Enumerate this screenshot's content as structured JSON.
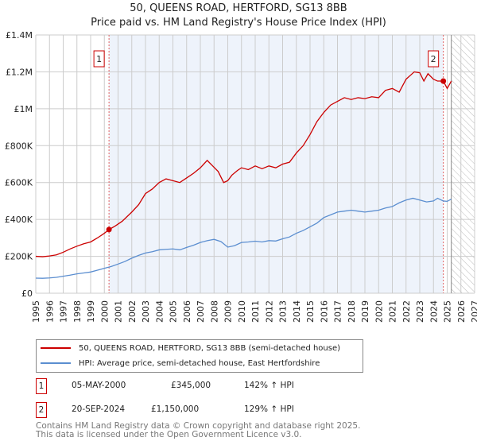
{
  "chart_data": {
    "type": "line",
    "title": "50, QUEENS ROAD, HERTFORD, SG13 8BB",
    "subtitle": "Price paid vs. HM Land Registry's House Price Index (HPI)",
    "xlim": [
      1995,
      2027
    ],
    "ylim": [
      0,
      1400000
    ],
    "yticks": [
      {
        "v": 0,
        "label": "£0"
      },
      {
        "v": 200000,
        "label": "£200K"
      },
      {
        "v": 400000,
        "label": "£400K"
      },
      {
        "v": 600000,
        "label": "£600K"
      },
      {
        "v": 800000,
        "label": "£800K"
      },
      {
        "v": 1000000,
        "label": "£1M"
      },
      {
        "v": 1200000,
        "label": "£1.2M"
      },
      {
        "v": 1400000,
        "label": "£1.4M"
      }
    ],
    "xticks": [
      "1995",
      "1996",
      "1997",
      "1998",
      "1999",
      "2000",
      "2001",
      "2002",
      "2003",
      "2004",
      "2005",
      "2006",
      "2007",
      "2008",
      "2009",
      "2010",
      "2011",
      "2012",
      "2013",
      "2014",
      "2015",
      "2016",
      "2017",
      "2018",
      "2019",
      "2020",
      "2021",
      "2022",
      "2023",
      "2024",
      "2025",
      "2026",
      "2027"
    ],
    "grid": true,
    "future_from": 2025.3,
    "series": [
      {
        "name": "50, QUEENS ROAD, HERTFORD, SG13 8BB (semi-detached house)",
        "color": "#cc0000",
        "x": [
          1995,
          1995.5,
          1996,
          1996.5,
          1997,
          1997.5,
          1998,
          1998.5,
          1999,
          1999.5,
          2000,
          2000.34,
          2000.8,
          2001.3,
          2002,
          2002.5,
          2003,
          2003.5,
          2004,
          2004.5,
          2005,
          2005.5,
          2006,
          2006.5,
          2007,
          2007.5,
          2007.9,
          2008.3,
          2008.7,
          2009,
          2009.3,
          2009.7,
          2010,
          2010.5,
          2011,
          2011.5,
          2012,
          2012.5,
          2013,
          2013.5,
          2014,
          2014.5,
          2015,
          2015.5,
          2016,
          2016.5,
          2017,
          2017.5,
          2018,
          2018.5,
          2019,
          2019.5,
          2020,
          2020.5,
          2021,
          2021.5,
          2022,
          2022.3,
          2022.6,
          2023,
          2023.3,
          2023.6,
          2024,
          2024.3,
          2024.72,
          2025,
          2025.3
        ],
        "y": [
          200000,
          198000,
          202000,
          208000,
          222000,
          240000,
          255000,
          268000,
          278000,
          300000,
          325000,
          345000,
          365000,
          390000,
          440000,
          480000,
          540000,
          565000,
          600000,
          620000,
          610000,
          600000,
          625000,
          650000,
          680000,
          720000,
          690000,
          660000,
          600000,
          610000,
          640000,
          665000,
          680000,
          670000,
          690000,
          675000,
          690000,
          680000,
          700000,
          710000,
          760000,
          800000,
          860000,
          930000,
          980000,
          1020000,
          1040000,
          1060000,
          1050000,
          1060000,
          1055000,
          1065000,
          1060000,
          1100000,
          1110000,
          1090000,
          1160000,
          1180000,
          1200000,
          1195000,
          1150000,
          1190000,
          1160000,
          1150000,
          1150000,
          1110000,
          1150000
        ]
      },
      {
        "name": "HPI: Average price, semi-detached house, East Hertfordshire",
        "color": "#5b8ed0",
        "x": [
          1995,
          1995.5,
          1996,
          1996.5,
          1997,
          1997.5,
          1998,
          1998.5,
          1999,
          1999.5,
          2000,
          2000.5,
          2001,
          2001.5,
          2002,
          2002.5,
          2003,
          2003.5,
          2004,
          2004.5,
          2005,
          2005.5,
          2006,
          2006.5,
          2007,
          2007.5,
          2008,
          2008.5,
          2009,
          2009.5,
          2010,
          2010.5,
          2011,
          2011.5,
          2012,
          2012.5,
          2013,
          2013.5,
          2014,
          2014.5,
          2015,
          2015.5,
          2016,
          2016.5,
          2017,
          2017.5,
          2018,
          2018.5,
          2019,
          2019.5,
          2020,
          2020.5,
          2021,
          2021.5,
          2022,
          2022.5,
          2023,
          2023.5,
          2024,
          2024.3,
          2024.72,
          2025,
          2025.3
        ],
        "y": [
          82000,
          81000,
          83000,
          86000,
          92000,
          98000,
          105000,
          110000,
          115000,
          125000,
          135000,
          145000,
          158000,
          172000,
          190000,
          205000,
          218000,
          225000,
          235000,
          238000,
          240000,
          235000,
          248000,
          260000,
          275000,
          285000,
          292000,
          280000,
          250000,
          258000,
          275000,
          278000,
          282000,
          278000,
          285000,
          283000,
          295000,
          305000,
          325000,
          340000,
          360000,
          380000,
          410000,
          425000,
          440000,
          445000,
          450000,
          445000,
          440000,
          445000,
          450000,
          462000,
          470000,
          490000,
          505000,
          515000,
          505000,
          495000,
          500000,
          515000,
          500000,
          498000,
          510000
        ]
      }
    ],
    "annotations": [
      {
        "label": "1",
        "x": 2000.34,
        "y": 345000
      },
      {
        "label": "2",
        "x": 2024.72,
        "y": 1150000
      }
    ]
  },
  "legend": {
    "red": "50, QUEENS ROAD, HERTFORD, SG13 8BB (semi-detached house)",
    "blue": "HPI: Average price, semi-detached house, East Hertfordshire"
  },
  "sales": [
    {
      "num": "1",
      "date": "05-MAY-2000",
      "price": "£345,000",
      "hpi": "142% ↑ HPI"
    },
    {
      "num": "2",
      "date": "20-SEP-2024",
      "price": "£1,150,000",
      "hpi": "129% ↑ HPI"
    }
  ],
  "footer": {
    "line1": "Contains HM Land Registry data © Crown copyright and database right 2025.",
    "line2": "This data is licensed under the Open Government Licence v3.0."
  }
}
